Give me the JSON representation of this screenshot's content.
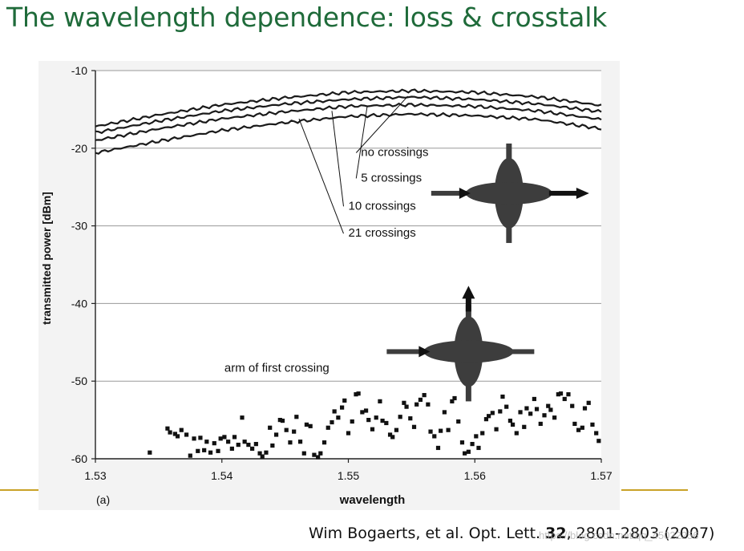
{
  "slide": {
    "title": "The wavelength dependence: loss & crosstalk",
    "citation_prefix": "Wim Bogaerts, et al. Opt. Lett. ",
    "citation_volume": "32",
    "citation_suffix": ", 2801-2803 (2007)",
    "watermark": "https://blog.csdn.net/qq_45022256"
  },
  "colors": {
    "title": "#1f6b3a",
    "rule": "#c9a227",
    "curve": "#1a1a1a",
    "symbol": "#3d3d3d",
    "panel": "#f3f3f3"
  },
  "chart_data": {
    "type": "line",
    "panel_label": "(a)",
    "xlabel": "wavelength",
    "ylabel": "transmitted power [dBm]",
    "xlim": [
      1.53,
      1.57
    ],
    "ylim": [
      -60,
      -10
    ],
    "x_ticks": [
      1.53,
      1.54,
      1.55,
      1.56,
      1.57
    ],
    "y_ticks": [
      -10,
      -20,
      -30,
      -40,
      -50,
      -60
    ],
    "x_tick_labels": [
      "1.53",
      "1.54",
      "1.55",
      "1.56",
      "1.57"
    ],
    "y_tick_labels": [
      "-10",
      "-20",
      "-30",
      "-40",
      "-50",
      "-60"
    ],
    "series": [
      {
        "name": "no crossings",
        "label_anchor": [
          1.5547,
          -13.3
        ],
        "x": [
          1.53,
          1.535,
          1.54,
          1.545,
          1.55,
          1.555,
          1.56,
          1.565,
          1.57
        ],
        "y": [
          -17.2,
          -15.7,
          -14.4,
          -13.5,
          -12.8,
          -12.6,
          -12.8,
          -13.4,
          -14.5
        ]
      },
      {
        "name": "5 crossings",
        "label_anchor": [
          1.5515,
          -14.5
        ],
        "x": [
          1.53,
          1.535,
          1.54,
          1.545,
          1.55,
          1.555,
          1.56,
          1.565,
          1.57
        ],
        "y": [
          -18.0,
          -16.5,
          -15.2,
          -14.3,
          -13.7,
          -13.4,
          -13.7,
          -14.3,
          -15.3
        ]
      },
      {
        "name": "10 crossings",
        "label_anchor": [
          1.5487,
          -15.2
        ],
        "x": [
          1.53,
          1.535,
          1.54,
          1.545,
          1.55,
          1.555,
          1.56,
          1.565,
          1.57
        ],
        "y": [
          -19.0,
          -17.5,
          -16.2,
          -15.3,
          -14.6,
          -14.4,
          -14.6,
          -15.2,
          -16.3
        ]
      },
      {
        "name": "21 crossings",
        "label_anchor": [
          1.5461,
          -16.2
        ],
        "x": [
          1.53,
          1.535,
          1.54,
          1.545,
          1.55,
          1.555,
          1.56,
          1.565,
          1.57
        ],
        "y": [
          -20.6,
          -19.1,
          -17.7,
          -16.7,
          -15.9,
          -15.6,
          -15.8,
          -16.3,
          -17.5
        ]
      }
    ],
    "legend_labels": [
      {
        "text": "no crossings",
        "at": [
          1.551,
          -21.0
        ]
      },
      {
        "text": "5 crossings",
        "at": [
          1.551,
          -24.3
        ]
      },
      {
        "text": "10 crossings",
        "at": [
          1.55,
          -27.9
        ]
      },
      {
        "text": "21 crossings",
        "at": [
          1.55,
          -31.4
        ]
      }
    ],
    "crosstalk": {
      "name": "arm of first crossing",
      "label_at": [
        1.5402,
        -48.8
      ],
      "x": [
        1.5343,
        1.5357,
        1.5359,
        1.5363,
        1.5365,
        1.5368,
        1.5372,
        1.5375,
        1.5378,
        1.5381,
        1.5383,
        1.5386,
        1.5388,
        1.5391,
        1.5394,
        1.5397,
        1.5399,
        1.5402,
        1.5405,
        1.5408,
        1.541,
        1.5413,
        1.5416,
        1.5418,
        1.5421,
        1.5424,
        1.5427,
        1.543,
        1.5432,
        1.5435,
        1.5438,
        1.544,
        1.5443,
        1.5446,
        1.5448,
        1.5451,
        1.5454,
        1.5457,
        1.5459,
        1.5462,
        1.5465,
        1.5467,
        1.547,
        1.5473,
        1.5476,
        1.5478,
        1.5481,
        1.5484,
        1.5487,
        1.5489,
        1.5492,
        1.5495,
        1.5497,
        1.55,
        1.5503,
        1.5506,
        1.5508,
        1.5511,
        1.5514,
        1.5516,
        1.5519,
        1.5522,
        1.5525,
        1.5527,
        1.553,
        1.5533,
        1.5535,
        1.5538,
        1.5541,
        1.5544,
        1.5546,
        1.5549,
        1.5552,
        1.5554,
        1.5557,
        1.556,
        1.5563,
        1.5565,
        1.5568,
        1.5571,
        1.5573,
        1.5576,
        1.5579,
        1.5582,
        1.5584,
        1.5587,
        1.559,
        1.5592,
        1.5595,
        1.5598,
        1.5601,
        1.5603,
        1.5606,
        1.5609,
        1.5611,
        1.5614,
        1.5617,
        1.562,
        1.5622,
        1.5625,
        1.5628,
        1.563,
        1.5633,
        1.5636,
        1.5639,
        1.5641,
        1.5644,
        1.5647,
        1.5649,
        1.5652,
        1.5655,
        1.5658,
        1.566,
        1.5663,
        1.5666,
        1.5668,
        1.5671,
        1.5674,
        1.5677,
        1.5679,
        1.5682,
        1.5685,
        1.5687,
        1.569,
        1.5693,
        1.5696,
        1.5698
      ],
      "y": [
        -59.2,
        -56.1,
        -56.6,
        -56.8,
        -57.1,
        -56.3,
        -56.9,
        -59.6,
        -57.4,
        -59.0,
        -57.3,
        -58.9,
        -57.8,
        -59.2,
        -58.0,
        -59.0,
        -57.4,
        -57.2,
        -57.8,
        -58.7,
        -57.2,
        -58.2,
        -54.7,
        -57.8,
        -58.2,
        -58.7,
        -58.1,
        -59.3,
        -59.7,
        -59.2,
        -56.0,
        -58.3,
        -56.9,
        -55.0,
        -55.1,
        -56.3,
        -57.9,
        -56.5,
        -54.6,
        -57.8,
        -59.3,
        -55.6,
        -55.8,
        -59.5,
        -59.8,
        -59.3,
        -57.9,
        -56.0,
        -55.3,
        -53.9,
        -54.7,
        -53.4,
        -52.5,
        -56.7,
        -55.2,
        -51.7,
        -51.6,
        -54.0,
        -53.8,
        -55.0,
        -56.2,
        -54.7,
        -52.6,
        -55.1,
        -55.4,
        -56.9,
        -57.2,
        -56.3,
        -54.6,
        -52.8,
        -53.3,
        -54.8,
        -55.9,
        -53.0,
        -52.4,
        -51.8,
        -53.0,
        -56.5,
        -57.1,
        -58.6,
        -56.4,
        -54.0,
        -56.3,
        -52.6,
        -52.2,
        -55.2,
        -57.9,
        -59.3,
        -59.1,
        -58.1,
        -57.1,
        -58.6,
        -56.7,
        -54.9,
        -54.5,
        -54.1,
        -56.2,
        -53.9,
        -52.0,
        -53.3,
        -55.1,
        -55.6,
        -56.7,
        -54.0,
        -55.9,
        -53.5,
        -54.2,
        -52.3,
        -53.6,
        -55.5,
        -54.4,
        -53.2,
        -53.7,
        -54.7,
        -51.7,
        -51.6,
        -52.3,
        -51.7,
        -53.2,
        -55.5,
        -56.3,
        -56.0,
        -53.5,
        -52.8,
        -55.6,
        -56.7,
        -57.7
      ]
    },
    "insets": [
      {
        "name": "crossing-through",
        "center": [
          1.5627,
          -25.8
        ],
        "arrow": "right"
      },
      {
        "name": "crossing-arm",
        "center": [
          1.5595,
          -46.2
        ],
        "arrow": "up"
      }
    ]
  }
}
